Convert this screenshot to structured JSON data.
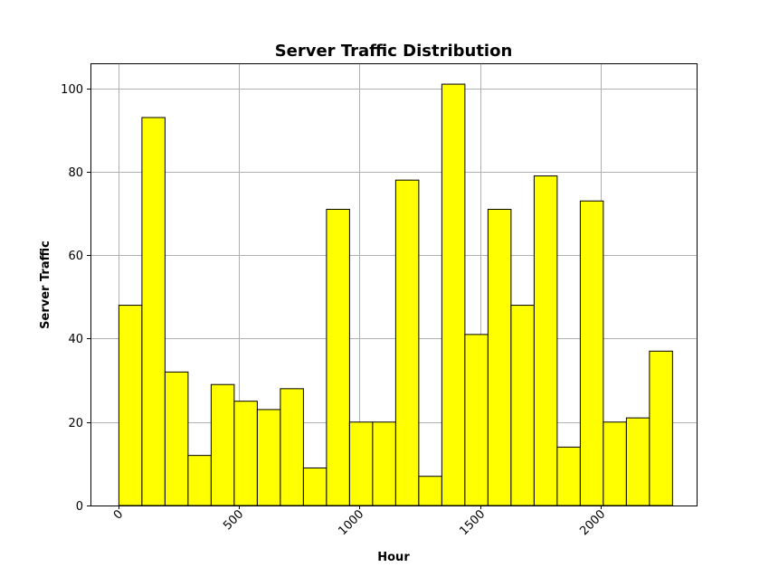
{
  "chart_data": {
    "type": "bar",
    "title": "Server Traffic Distribution",
    "xlabel": "Hour",
    "ylabel": "Server Traffic",
    "bin_width": 95.83,
    "x_start": 0,
    "values": [
      48,
      93,
      32,
      12,
      29,
      25,
      23,
      28,
      9,
      71,
      20,
      20,
      78,
      7,
      101,
      41,
      71,
      48,
      79,
      14,
      73,
      20,
      21,
      37
    ],
    "xlim": [
      -118,
      2400
    ],
    "ylim": [
      0,
      106
    ],
    "x_ticks": [
      0,
      500,
      1000,
      1500,
      2000
    ],
    "y_ticks": [
      0,
      20,
      40,
      60,
      80,
      100
    ],
    "x_tick_rotation": -45,
    "grid": true,
    "bar_color": "#ffff00",
    "edge_color": "#000000",
    "grid_color": "#b0b0b0"
  }
}
